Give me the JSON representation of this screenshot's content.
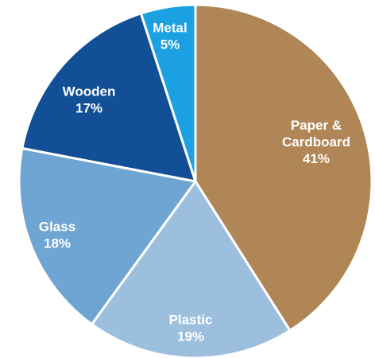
{
  "chart_data": {
    "type": "pie",
    "slices": [
      {
        "label": [
          "Paper &",
          "Cardboard"
        ],
        "value": 41,
        "value_label": "41%",
        "color": "#b08656"
      },
      {
        "label": [
          "Plastic"
        ],
        "value": 19,
        "value_label": "19%",
        "color": "#9dbfde"
      },
      {
        "label": [
          "Glass"
        ],
        "value": 18,
        "value_label": "18%",
        "color": "#6ea5d2"
      },
      {
        "label": [
          "Wooden"
        ],
        "value": 17,
        "value_label": "17%",
        "color": "#124f95"
      },
      {
        "label": [
          "Metal"
        ],
        "value": 5,
        "value_label": "5%",
        "color": "#1ba0e2"
      }
    ]
  }
}
